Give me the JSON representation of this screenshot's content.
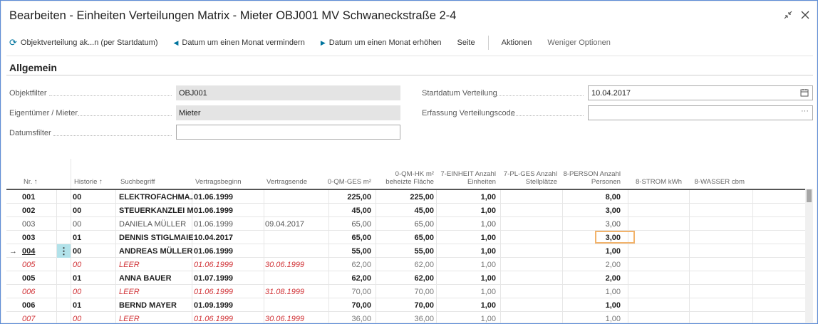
{
  "window": {
    "title": "Bearbeiten - Einheiten Verteilungen Matrix - Mieter OBJ001 MV Schwaneckstraße 2-4"
  },
  "actions": [
    {
      "label": "Objektverteilung ak...n (per Startdatum)",
      "icon": "refresh-icon",
      "glyph": "⟳"
    },
    {
      "label": "Datum um einen Monat vermindern",
      "icon": "arrow-left-icon",
      "glyph": "◀"
    },
    {
      "label": "Datum um einen Monat erhöhen",
      "icon": "arrow-right-icon",
      "glyph": "▶"
    },
    {
      "label": "Seite"
    },
    {
      "label": "Aktionen"
    },
    {
      "label": "Weniger Optionen"
    }
  ],
  "section": {
    "title": "Allgemein"
  },
  "fields": {
    "objektfilter": {
      "label": "Objektfilter",
      "value": "OBJ001"
    },
    "eigentuemer": {
      "label": "Eigentümer / Mieter",
      "value": "Mieter"
    },
    "datumsfilter": {
      "label": "Datumsfilter",
      "value": ""
    },
    "startdatum": {
      "label": "Startdatum Verteilung",
      "value": "10.04.2017"
    },
    "erfassung": {
      "label": "Erfassung Verteilungscode",
      "value": ""
    }
  },
  "table": {
    "columns": [
      {
        "label": "Nr. ↑"
      },
      {
        "label": "Historie ↑"
      },
      {
        "label": "Suchbegriff"
      },
      {
        "label": "Vertragsbeginn"
      },
      {
        "label": "Vertragsende"
      },
      {
        "label": "0-QM-GES m²"
      },
      {
        "label": "0-QM-HK m² beheizte Fläche"
      },
      {
        "label": "7-EINHEIT Anzahl Einheiten"
      },
      {
        "label": "7-PL-GES Anzahl Stellplätze"
      },
      {
        "label": "8-PERSON Anzahl Personen"
      },
      {
        "label": "8-STROM kWh"
      },
      {
        "label": "8-WASSER cbm"
      }
    ],
    "rows": [
      {
        "style": "bold",
        "nr": "001",
        "hist": "00",
        "such": "ELEKTROFACHMA...",
        "beginn": "01.06.1999",
        "ende": "",
        "qm": "225,00",
        "qmhk": "225,00",
        "einh": "1,00",
        "stell": "",
        "pers": "8,00"
      },
      {
        "style": "bold",
        "nr": "002",
        "hist": "00",
        "such": "STEUERKANZLEI M...",
        "beginn": "01.06.1999",
        "ende": "",
        "qm": "45,00",
        "qmhk": "45,00",
        "einh": "1,00",
        "stell": "",
        "pers": "3,00"
      },
      {
        "style": "normal",
        "nr": "003",
        "hist": "00",
        "such": "DANIELA MÜLLER",
        "beginn": "01.06.1999",
        "ende": "09.04.2017",
        "qm": "65,00",
        "qmhk": "65,00",
        "einh": "1,00",
        "stell": "",
        "pers": "3,00"
      },
      {
        "style": "bold",
        "nr": "003",
        "hist": "01",
        "such": "DENNIS STIGLMAIER",
        "beginn": "10.04.2017",
        "ende": "",
        "qm": "65,00",
        "qmhk": "65,00",
        "einh": "1,00",
        "stell": "",
        "pers": "3,00"
      },
      {
        "style": "bold",
        "nr": "004",
        "hist": "00",
        "such": "ANDREAS MÜLLER",
        "beginn": "01.06.1999",
        "ende": "",
        "qm": "55,00",
        "qmhk": "55,00",
        "einh": "1,00",
        "stell": "",
        "pers": "1,00"
      },
      {
        "style": "empty",
        "nr": "005",
        "hist": "00",
        "such": "LEER",
        "beginn": "01.06.1999",
        "ende": "30.06.1999",
        "qm": "62,00",
        "qmhk": "62,00",
        "einh": "1,00",
        "stell": "",
        "pers": "2,00"
      },
      {
        "style": "bold",
        "nr": "005",
        "hist": "01",
        "such": "ANNA BAUER",
        "beginn": "01.07.1999",
        "ende": "",
        "qm": "62,00",
        "qmhk": "62,00",
        "einh": "1,00",
        "stell": "",
        "pers": "2,00"
      },
      {
        "style": "empty",
        "nr": "006",
        "hist": "00",
        "such": "LEER",
        "beginn": "01.06.1999",
        "ende": "31.08.1999",
        "qm": "70,00",
        "qmhk": "70,00",
        "einh": "1,00",
        "stell": "",
        "pers": "1,00"
      },
      {
        "style": "bold",
        "nr": "006",
        "hist": "01",
        "such": "BERND MAYER",
        "beginn": "01.09.1999",
        "ende": "",
        "qm": "70,00",
        "qmhk": "70,00",
        "einh": "1,00",
        "stell": "",
        "pers": "1,00"
      },
      {
        "style": "empty",
        "nr": "007",
        "hist": "00",
        "such": "LEER",
        "beginn": "01.06.1999",
        "ende": "30.06.1999",
        "qm": "36,00",
        "qmhk": "36,00",
        "einh": "1,00",
        "stell": "",
        "pers": "1,00"
      }
    ],
    "current_row_index": 4,
    "focused_row_index": 3,
    "current_row_marker": "→"
  },
  "colors": {
    "accent": "#00749e",
    "empty_row_text": "#d13438",
    "focus_border": "#f2b36b",
    "row_menu_bg": "#b2e2ea"
  }
}
